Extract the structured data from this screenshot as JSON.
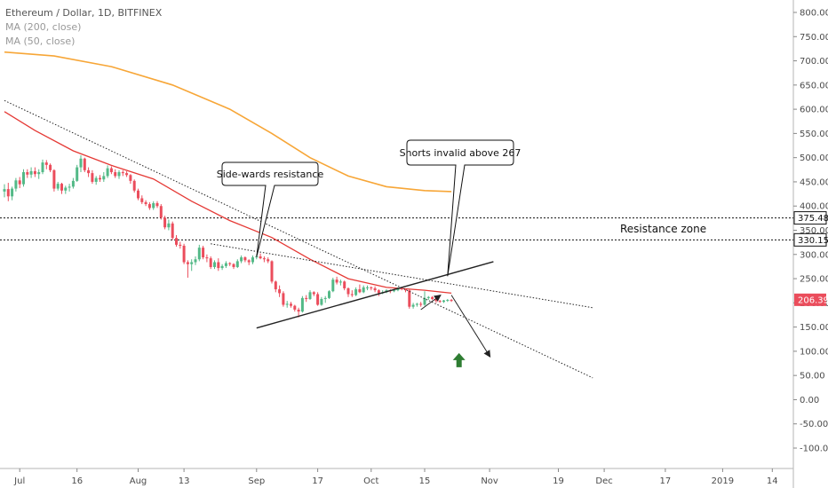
{
  "legend": {
    "title": "Ethereum / Dollar, 1D, BITFINEX",
    "ma200": "MA (200, close)",
    "ma50": "MA (50, close)"
  },
  "chart_data": {
    "type": "candlestick",
    "title": "Ethereum / Dollar, 1D, BITFINEX",
    "ylim": [
      -120,
      820
    ],
    "y_ticks": [
      800,
      750,
      700,
      650,
      600,
      550,
      500,
      450,
      400,
      350,
      300,
      250,
      200,
      150,
      100,
      50,
      0,
      -50,
      -100
    ],
    "y_tick_labels": [
      "800.00",
      "750.00",
      "700.00",
      "650.00",
      "600.00",
      "550.00",
      "500.00",
      "450.00",
      "400.00",
      "350.00",
      "300.00",
      "250.00",
      "200.00",
      "150.00",
      "100.00",
      "50.00",
      "0.00",
      "-50.00",
      "-100.00"
    ],
    "x_range": [
      "2018-06-27",
      "2019-01-19"
    ],
    "x_ticks": [
      {
        "date": "2018-07-01",
        "label": "Jul"
      },
      {
        "date": "2018-07-16",
        "label": "16"
      },
      {
        "date": "2018-08-01",
        "label": "Aug"
      },
      {
        "date": "2018-08-13",
        "label": "13"
      },
      {
        "date": "2018-09-01",
        "label": "Sep"
      },
      {
        "date": "2018-09-17",
        "label": "17"
      },
      {
        "date": "2018-10-01",
        "label": "Oct"
      },
      {
        "date": "2018-10-15",
        "label": "15"
      },
      {
        "date": "2018-11-01",
        "label": "Nov"
      },
      {
        "date": "2018-11-19",
        "label": "19"
      },
      {
        "date": "2018-12-01",
        "label": "Dec"
      },
      {
        "date": "2018-12-17",
        "label": "17"
      },
      {
        "date": "2019-01-01",
        "label": "2019"
      },
      {
        "date": "2019-01-14",
        "label": "14"
      }
    ],
    "colors": {
      "up": "#53b987",
      "down": "#eb4d5c",
      "ma200": "#f7a637",
      "ma50": "#e53935",
      "trendline": "#222222",
      "badge_bg": "#eb4d5c",
      "arrow_up": "#2e7d32"
    },
    "candles": [
      {
        "d": "2018-06-27",
        "o": 430,
        "h": 445,
        "l": 418,
        "c": 435
      },
      {
        "d": "2018-06-28",
        "o": 435,
        "h": 448,
        "l": 410,
        "c": 420
      },
      {
        "d": "2018-06-29",
        "o": 420,
        "h": 440,
        "l": 412,
        "c": 436
      },
      {
        "d": "2018-06-30",
        "o": 436,
        "h": 458,
        "l": 430,
        "c": 453
      },
      {
        "d": "2018-07-01",
        "o": 453,
        "h": 460,
        "l": 437,
        "c": 445
      },
      {
        "d": "2018-07-02",
        "o": 445,
        "h": 476,
        "l": 440,
        "c": 470
      },
      {
        "d": "2018-07-03",
        "o": 470,
        "h": 476,
        "l": 458,
        "c": 465
      },
      {
        "d": "2018-07-04",
        "o": 465,
        "h": 480,
        "l": 458,
        "c": 472
      },
      {
        "d": "2018-07-05",
        "o": 472,
        "h": 480,
        "l": 460,
        "c": 466
      },
      {
        "d": "2018-07-06",
        "o": 466,
        "h": 476,
        "l": 456,
        "c": 470
      },
      {
        "d": "2018-07-07",
        "o": 470,
        "h": 496,
        "l": 466,
        "c": 490
      },
      {
        "d": "2018-07-08",
        "o": 490,
        "h": 495,
        "l": 476,
        "c": 485
      },
      {
        "d": "2018-07-09",
        "o": 485,
        "h": 488,
        "l": 470,
        "c": 474
      },
      {
        "d": "2018-07-10",
        "o": 474,
        "h": 476,
        "l": 430,
        "c": 436
      },
      {
        "d": "2018-07-11",
        "o": 436,
        "h": 450,
        "l": 432,
        "c": 446
      },
      {
        "d": "2018-07-12",
        "o": 446,
        "h": 448,
        "l": 425,
        "c": 432
      },
      {
        "d": "2018-07-13",
        "o": 432,
        "h": 442,
        "l": 425,
        "c": 438
      },
      {
        "d": "2018-07-14",
        "o": 438,
        "h": 446,
        "l": 430,
        "c": 440
      },
      {
        "d": "2018-07-15",
        "o": 440,
        "h": 458,
        "l": 436,
        "c": 452
      },
      {
        "d": "2018-07-16",
        "o": 452,
        "h": 485,
        "l": 450,
        "c": 480
      },
      {
        "d": "2018-07-17",
        "o": 480,
        "h": 505,
        "l": 470,
        "c": 498
      },
      {
        "d": "2018-07-18",
        "o": 498,
        "h": 500,
        "l": 470,
        "c": 474
      },
      {
        "d": "2018-07-19",
        "o": 474,
        "h": 480,
        "l": 460,
        "c": 468
      },
      {
        "d": "2018-07-20",
        "o": 468,
        "h": 474,
        "l": 446,
        "c": 450
      },
      {
        "d": "2018-07-21",
        "o": 450,
        "h": 462,
        "l": 444,
        "c": 458
      },
      {
        "d": "2018-07-22",
        "o": 458,
        "h": 464,
        "l": 450,
        "c": 455
      },
      {
        "d": "2018-07-23",
        "o": 455,
        "h": 470,
        "l": 450,
        "c": 462
      },
      {
        "d": "2018-07-24",
        "o": 462,
        "h": 484,
        "l": 458,
        "c": 478
      },
      {
        "d": "2018-07-25",
        "o": 478,
        "h": 482,
        "l": 466,
        "c": 470
      },
      {
        "d": "2018-07-26",
        "o": 470,
        "h": 476,
        "l": 458,
        "c": 462
      },
      {
        "d": "2018-07-27",
        "o": 462,
        "h": 474,
        "l": 456,
        "c": 470
      },
      {
        "d": "2018-07-28",
        "o": 470,
        "h": 474,
        "l": 462,
        "c": 468
      },
      {
        "d": "2018-07-29",
        "o": 468,
        "h": 472,
        "l": 460,
        "c": 464
      },
      {
        "d": "2018-07-30",
        "o": 464,
        "h": 466,
        "l": 446,
        "c": 452
      },
      {
        "d": "2018-07-31",
        "o": 452,
        "h": 455,
        "l": 428,
        "c": 432
      },
      {
        "d": "2018-08-01",
        "o": 432,
        "h": 436,
        "l": 412,
        "c": 416
      },
      {
        "d": "2018-08-02",
        "o": 416,
        "h": 422,
        "l": 404,
        "c": 408
      },
      {
        "d": "2018-08-03",
        "o": 408,
        "h": 412,
        "l": 400,
        "c": 404
      },
      {
        "d": "2018-08-04",
        "o": 404,
        "h": 408,
        "l": 392,
        "c": 396
      },
      {
        "d": "2018-08-05",
        "o": 396,
        "h": 410,
        "l": 392,
        "c": 406
      },
      {
        "d": "2018-08-06",
        "o": 406,
        "h": 410,
        "l": 396,
        "c": 400
      },
      {
        "d": "2018-08-07",
        "o": 400,
        "h": 404,
        "l": 372,
        "c": 376
      },
      {
        "d": "2018-08-08",
        "o": 376,
        "h": 380,
        "l": 352,
        "c": 356
      },
      {
        "d": "2018-08-09",
        "o": 356,
        "h": 372,
        "l": 350,
        "c": 364
      },
      {
        "d": "2018-08-10",
        "o": 364,
        "h": 368,
        "l": 330,
        "c": 334
      },
      {
        "d": "2018-08-11",
        "o": 334,
        "h": 340,
        "l": 316,
        "c": 320
      },
      {
        "d": "2018-08-12",
        "o": 320,
        "h": 326,
        "l": 312,
        "c": 318
      },
      {
        "d": "2018-08-13",
        "o": 318,
        "h": 322,
        "l": 280,
        "c": 284
      },
      {
        "d": "2018-08-14",
        "o": 284,
        "h": 288,
        "l": 252,
        "c": 280
      },
      {
        "d": "2018-08-15",
        "o": 280,
        "h": 290,
        "l": 266,
        "c": 284
      },
      {
        "d": "2018-08-16",
        "o": 284,
        "h": 296,
        "l": 278,
        "c": 290
      },
      {
        "d": "2018-08-17",
        "o": 290,
        "h": 320,
        "l": 286,
        "c": 314
      },
      {
        "d": "2018-08-18",
        "o": 314,
        "h": 318,
        "l": 290,
        "c": 294
      },
      {
        "d": "2018-08-19",
        "o": 294,
        "h": 300,
        "l": 284,
        "c": 292
      },
      {
        "d": "2018-08-20",
        "o": 292,
        "h": 296,
        "l": 270,
        "c": 274
      },
      {
        "d": "2018-08-21",
        "o": 274,
        "h": 288,
        "l": 270,
        "c": 284
      },
      {
        "d": "2018-08-22",
        "o": 284,
        "h": 292,
        "l": 266,
        "c": 272
      },
      {
        "d": "2018-08-23",
        "o": 272,
        "h": 280,
        "l": 268,
        "c": 276
      },
      {
        "d": "2018-08-24",
        "o": 276,
        "h": 286,
        "l": 272,
        "c": 282
      },
      {
        "d": "2018-08-25",
        "o": 282,
        "h": 284,
        "l": 276,
        "c": 280
      },
      {
        "d": "2018-08-26",
        "o": 280,
        "h": 282,
        "l": 270,
        "c": 274
      },
      {
        "d": "2018-08-27",
        "o": 274,
        "h": 290,
        "l": 272,
        "c": 286
      },
      {
        "d": "2018-08-28",
        "o": 286,
        "h": 298,
        "l": 282,
        "c": 294
      },
      {
        "d": "2018-08-29",
        "o": 294,
        "h": 296,
        "l": 284,
        "c": 288
      },
      {
        "d": "2018-08-30",
        "o": 288,
        "h": 290,
        "l": 278,
        "c": 284
      },
      {
        "d": "2018-08-31",
        "o": 284,
        "h": 298,
        "l": 280,
        "c": 294
      },
      {
        "d": "2018-09-01",
        "o": 294,
        "h": 300,
        "l": 290,
        "c": 296
      },
      {
        "d": "2018-09-02",
        "o": 296,
        "h": 302,
        "l": 290,
        "c": 292
      },
      {
        "d": "2018-09-03",
        "o": 292,
        "h": 296,
        "l": 284,
        "c": 290
      },
      {
        "d": "2018-09-04",
        "o": 290,
        "h": 294,
        "l": 282,
        "c": 286
      },
      {
        "d": "2018-09-05",
        "o": 286,
        "h": 288,
        "l": 240,
        "c": 244
      },
      {
        "d": "2018-09-06",
        "o": 244,
        "h": 246,
        "l": 222,
        "c": 228
      },
      {
        "d": "2018-09-07",
        "o": 228,
        "h": 236,
        "l": 212,
        "c": 220
      },
      {
        "d": "2018-09-08",
        "o": 220,
        "h": 224,
        "l": 192,
        "c": 196
      },
      {
        "d": "2018-09-09",
        "o": 196,
        "h": 204,
        "l": 190,
        "c": 198
      },
      {
        "d": "2018-09-10",
        "o": 198,
        "h": 202,
        "l": 190,
        "c": 194
      },
      {
        "d": "2018-09-11",
        "o": 194,
        "h": 196,
        "l": 182,
        "c": 186
      },
      {
        "d": "2018-09-12",
        "o": 186,
        "h": 190,
        "l": 170,
        "c": 182
      },
      {
        "d": "2018-09-13",
        "o": 182,
        "h": 214,
        "l": 180,
        "c": 210
      },
      {
        "d": "2018-09-14",
        "o": 210,
        "h": 216,
        "l": 202,
        "c": 208
      },
      {
        "d": "2018-09-15",
        "o": 208,
        "h": 226,
        "l": 206,
        "c": 222
      },
      {
        "d": "2018-09-16",
        "o": 222,
        "h": 224,
        "l": 214,
        "c": 218
      },
      {
        "d": "2018-09-17",
        "o": 218,
        "h": 222,
        "l": 194,
        "c": 196
      },
      {
        "d": "2018-09-18",
        "o": 196,
        "h": 212,
        "l": 194,
        "c": 208
      },
      {
        "d": "2018-09-19",
        "o": 208,
        "h": 214,
        "l": 200,
        "c": 210
      },
      {
        "d": "2018-09-20",
        "o": 210,
        "h": 226,
        "l": 208,
        "c": 224
      },
      {
        "d": "2018-09-21",
        "o": 224,
        "h": 252,
        "l": 222,
        "c": 248
      },
      {
        "d": "2018-09-22",
        "o": 248,
        "h": 254,
        "l": 238,
        "c": 242
      },
      {
        "d": "2018-09-23",
        "o": 242,
        "h": 248,
        "l": 236,
        "c": 244
      },
      {
        "d": "2018-09-24",
        "o": 244,
        "h": 246,
        "l": 226,
        "c": 230
      },
      {
        "d": "2018-09-25",
        "o": 230,
        "h": 232,
        "l": 212,
        "c": 218
      },
      {
        "d": "2018-09-26",
        "o": 218,
        "h": 226,
        "l": 212,
        "c": 216
      },
      {
        "d": "2018-09-27",
        "o": 216,
        "h": 232,
        "l": 214,
        "c": 228
      },
      {
        "d": "2018-09-28",
        "o": 228,
        "h": 238,
        "l": 220,
        "c": 222
      },
      {
        "d": "2018-09-29",
        "o": 222,
        "h": 236,
        "l": 220,
        "c": 232
      },
      {
        "d": "2018-09-30",
        "o": 232,
        "h": 236,
        "l": 226,
        "c": 232
      },
      {
        "d": "2018-10-01",
        "o": 232,
        "h": 234,
        "l": 226,
        "c": 230
      },
      {
        "d": "2018-10-02",
        "o": 230,
        "h": 234,
        "l": 222,
        "c": 226
      },
      {
        "d": "2018-10-03",
        "o": 226,
        "h": 228,
        "l": 214,
        "c": 220
      },
      {
        "d": "2018-10-04",
        "o": 220,
        "h": 226,
        "l": 218,
        "c": 222
      },
      {
        "d": "2018-10-05",
        "o": 222,
        "h": 228,
        "l": 220,
        "c": 226
      },
      {
        "d": "2018-10-06",
        "o": 226,
        "h": 228,
        "l": 220,
        "c": 224
      },
      {
        "d": "2018-10-07",
        "o": 224,
        "h": 228,
        "l": 222,
        "c": 226
      },
      {
        "d": "2018-10-08",
        "o": 226,
        "h": 232,
        "l": 224,
        "c": 230
      },
      {
        "d": "2018-10-09",
        "o": 230,
        "h": 232,
        "l": 226,
        "c": 228
      },
      {
        "d": "2018-10-10",
        "o": 228,
        "h": 230,
        "l": 222,
        "c": 226
      },
      {
        "d": "2018-10-11",
        "o": 226,
        "h": 228,
        "l": 188,
        "c": 192
      },
      {
        "d": "2018-10-12",
        "o": 192,
        "h": 200,
        "l": 188,
        "c": 196
      },
      {
        "d": "2018-10-13",
        "o": 196,
        "h": 200,
        "l": 192,
        "c": 198
      },
      {
        "d": "2018-10-14",
        "o": 198,
        "h": 202,
        "l": 192,
        "c": 196
      },
      {
        "d": "2018-10-15",
        "o": 196,
        "h": 224,
        "l": 194,
        "c": 210
      },
      {
        "d": "2018-10-16",
        "o": 210,
        "h": 214,
        "l": 206,
        "c": 212
      },
      {
        "d": "2018-10-17",
        "o": 212,
        "h": 214,
        "l": 206,
        "c": 208
      },
      {
        "d": "2018-10-18",
        "o": 208,
        "h": 212,
        "l": 200,
        "c": 204
      },
      {
        "d": "2018-10-19",
        "o": 204,
        "h": 206,
        "l": 200,
        "c": 202
      },
      {
        "d": "2018-10-20",
        "o": 202,
        "h": 206,
        "l": 200,
        "c": 205
      },
      {
        "d": "2018-10-21",
        "o": 205,
        "h": 208,
        "l": 202,
        "c": 206
      },
      {
        "d": "2018-10-22",
        "o": 206,
        "h": 208,
        "l": 202,
        "c": 204
      }
    ],
    "ma200": {
      "name": "MA (200, close)",
      "points": [
        [
          "2018-06-27",
          718
        ],
        [
          "2018-07-10",
          710
        ],
        [
          "2018-07-25",
          688
        ],
        [
          "2018-08-10",
          650
        ],
        [
          "2018-08-25",
          600
        ],
        [
          "2018-09-05",
          550
        ],
        [
          "2018-09-15",
          500
        ],
        [
          "2018-09-25",
          462
        ],
        [
          "2018-10-05",
          440
        ],
        [
          "2018-10-15",
          432
        ],
        [
          "2018-10-22",
          430
        ]
      ]
    },
    "ma50": {
      "name": "MA (50, close)",
      "points": [
        [
          "2018-06-27",
          595
        ],
        [
          "2018-07-05",
          556
        ],
        [
          "2018-07-15",
          514
        ],
        [
          "2018-07-25",
          484
        ],
        [
          "2018-08-05",
          456
        ],
        [
          "2018-08-15",
          410
        ],
        [
          "2018-08-25",
          370
        ],
        [
          "2018-09-05",
          335
        ],
        [
          "2018-09-15",
          290
        ],
        [
          "2018-09-25",
          250
        ],
        [
          "2018-10-05",
          232
        ],
        [
          "2018-10-15",
          226
        ],
        [
          "2018-10-22",
          220
        ]
      ]
    },
    "trendlines": [
      {
        "type": "dotted",
        "from": [
          "2018-06-27",
          618
        ],
        "to": [
          "2018-11-28",
          45
        ]
      },
      {
        "type": "dotted",
        "from": [
          "2018-08-20",
          322
        ],
        "to": [
          "2018-11-28",
          190
        ]
      },
      {
        "type": "solid",
        "from": [
          "2018-09-01",
          148
        ],
        "to": [
          "2018-11-02",
          285
        ]
      }
    ],
    "arrows": [
      {
        "from": [
          "2018-10-14",
          186
        ],
        "to": [
          "2018-10-19",
          215
        ]
      },
      {
        "from": [
          "2018-10-22",
          216
        ],
        "to": [
          "2018-11-01",
          90
        ]
      }
    ],
    "horizontal_lines": [
      {
        "value": 375.48,
        "label": "375.48"
      },
      {
        "value": 330.15,
        "label": "330.15"
      }
    ],
    "last_price": {
      "value": 206.39,
      "label": "206.39"
    },
    "annotations": [
      {
        "text": "Side-wards resistance",
        "anchor": [
          "2018-09-01",
          295
        ]
      },
      {
        "text": "Shorts invalid above 267",
        "anchor": [
          "2018-10-21",
          255
        ]
      }
    ],
    "zone_label": "Resistance zone",
    "up_arrow_marker": [
      "2018-10-24",
      78
    ]
  }
}
